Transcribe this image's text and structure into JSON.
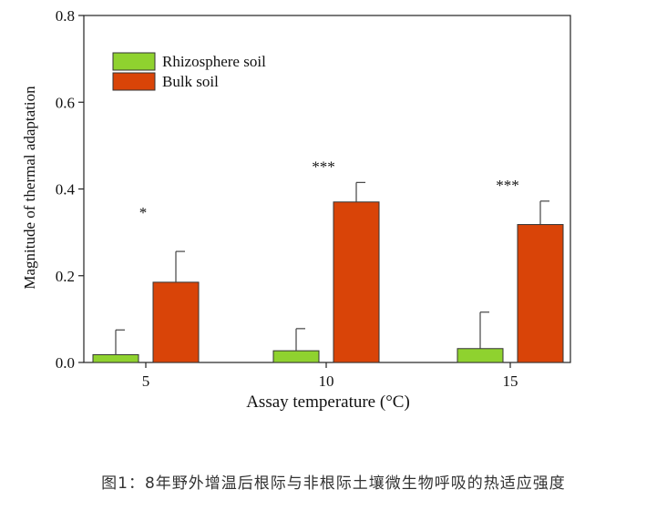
{
  "chart_data": {
    "type": "bar",
    "categories": [
      "5",
      "10",
      "15"
    ],
    "series": [
      {
        "name": "Rhizosphere soil",
        "values": [
          0.018,
          0.027,
          0.032
        ],
        "errors": [
          0.057,
          0.051,
          0.084
        ],
        "color": "#8fd22f"
      },
      {
        "name": "Bulk soil",
        "values": [
          0.185,
          0.37,
          0.318
        ],
        "errors": [
          0.071,
          0.045,
          0.054
        ],
        "color": "#d94408"
      }
    ],
    "significance": [
      "*",
      "***",
      "***"
    ],
    "xlabel": "Assay temperature (°C)",
    "ylabel": "Magnitude of thermal adaptation",
    "ylim": [
      0,
      0.8
    ],
    "yticks": [
      "0.0",
      "0.2",
      "0.4",
      "0.6",
      "0.8"
    ],
    "legend_position": "top-left",
    "grid": false
  },
  "caption": "图1：8年野外增温后根际与非根际土壤微生物呼吸的热适应强度"
}
